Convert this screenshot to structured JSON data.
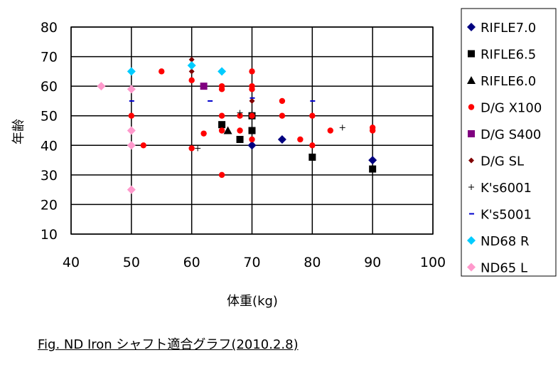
{
  "chart_data": {
    "type": "scatter",
    "title": "",
    "xlabel": "体重(kg)",
    "ylabel": "年齢",
    "xlim": [
      40,
      100
    ],
    "ylim": [
      10,
      80
    ],
    "xticks": [
      40,
      50,
      60,
      70,
      80,
      90,
      100
    ],
    "yticks": [
      10,
      20,
      30,
      40,
      50,
      60,
      70,
      80
    ],
    "grid": "horizontal and vertical",
    "legend": "right",
    "series": [
      {
        "name": "RIFLE7.0",
        "marker": "diamond",
        "color": "#000080",
        "points": [
          [
            70,
            40
          ],
          [
            75,
            42
          ],
          [
            90,
            35
          ]
        ]
      },
      {
        "name": "RIFLE6.5",
        "marker": "square",
        "color": "#000000",
        "points": [
          [
            65,
            47
          ],
          [
            68,
            42
          ],
          [
            70,
            45
          ],
          [
            70,
            50
          ],
          [
            80,
            36
          ],
          [
            90,
            32
          ]
        ]
      },
      {
        "name": "RIFLE6.0",
        "marker": "triangle",
        "color": "#000000",
        "points": [
          [
            66,
            45
          ]
        ]
      },
      {
        "name": "D/G X100",
        "marker": "circle",
        "color": "#ff0000",
        "points": [
          [
            50,
            50
          ],
          [
            52,
            40
          ],
          [
            55,
            65
          ],
          [
            60,
            62
          ],
          [
            60,
            39
          ],
          [
            62,
            44
          ],
          [
            65,
            60
          ],
          [
            65,
            59
          ],
          [
            65,
            50
          ],
          [
            65,
            45
          ],
          [
            65,
            30
          ],
          [
            68,
            50
          ],
          [
            68,
            45
          ],
          [
            70,
            65
          ],
          [
            70,
            60
          ],
          [
            70,
            59
          ],
          [
            70,
            50
          ],
          [
            70,
            42
          ],
          [
            75,
            55
          ],
          [
            75,
            50
          ],
          [
            78,
            42
          ],
          [
            80,
            50
          ],
          [
            80,
            40
          ],
          [
            83,
            45
          ],
          [
            90,
            46
          ],
          [
            90,
            45
          ]
        ]
      },
      {
        "name": "D/G S400",
        "marker": "square",
        "color": "#800080",
        "points": [
          [
            62,
            60
          ]
        ]
      },
      {
        "name": "D/G SL",
        "marker": "smalldiamond",
        "color": "#800000",
        "points": [
          [
            60,
            69
          ],
          [
            60,
            65
          ],
          [
            70,
            55
          ]
        ]
      },
      {
        "name": "K's6001",
        "marker": "plus",
        "color": "#000000",
        "points": [
          [
            61,
            39
          ],
          [
            68,
            51
          ],
          [
            85,
            46
          ]
        ]
      },
      {
        "name": "K's5001",
        "marker": "dash",
        "color": "#0000cc",
        "points": [
          [
            50,
            55
          ],
          [
            63,
            55
          ],
          [
            65,
            65
          ],
          [
            70,
            56
          ],
          [
            80,
            55
          ]
        ]
      },
      {
        "name": "ND68 R",
        "marker": "diamond",
        "color": "#00ccff",
        "points": [
          [
            50,
            65
          ],
          [
            60,
            67
          ],
          [
            65,
            65
          ]
        ]
      },
      {
        "name": "ND65 L",
        "marker": "diamond",
        "color": "#ff99cc",
        "points": [
          [
            45,
            60
          ],
          [
            50,
            59
          ],
          [
            50,
            45
          ],
          [
            50,
            40
          ],
          [
            50,
            25
          ]
        ]
      }
    ]
  },
  "caption": "Fig.  ND Iron シャフト適合グラフ(2010.2.8)"
}
